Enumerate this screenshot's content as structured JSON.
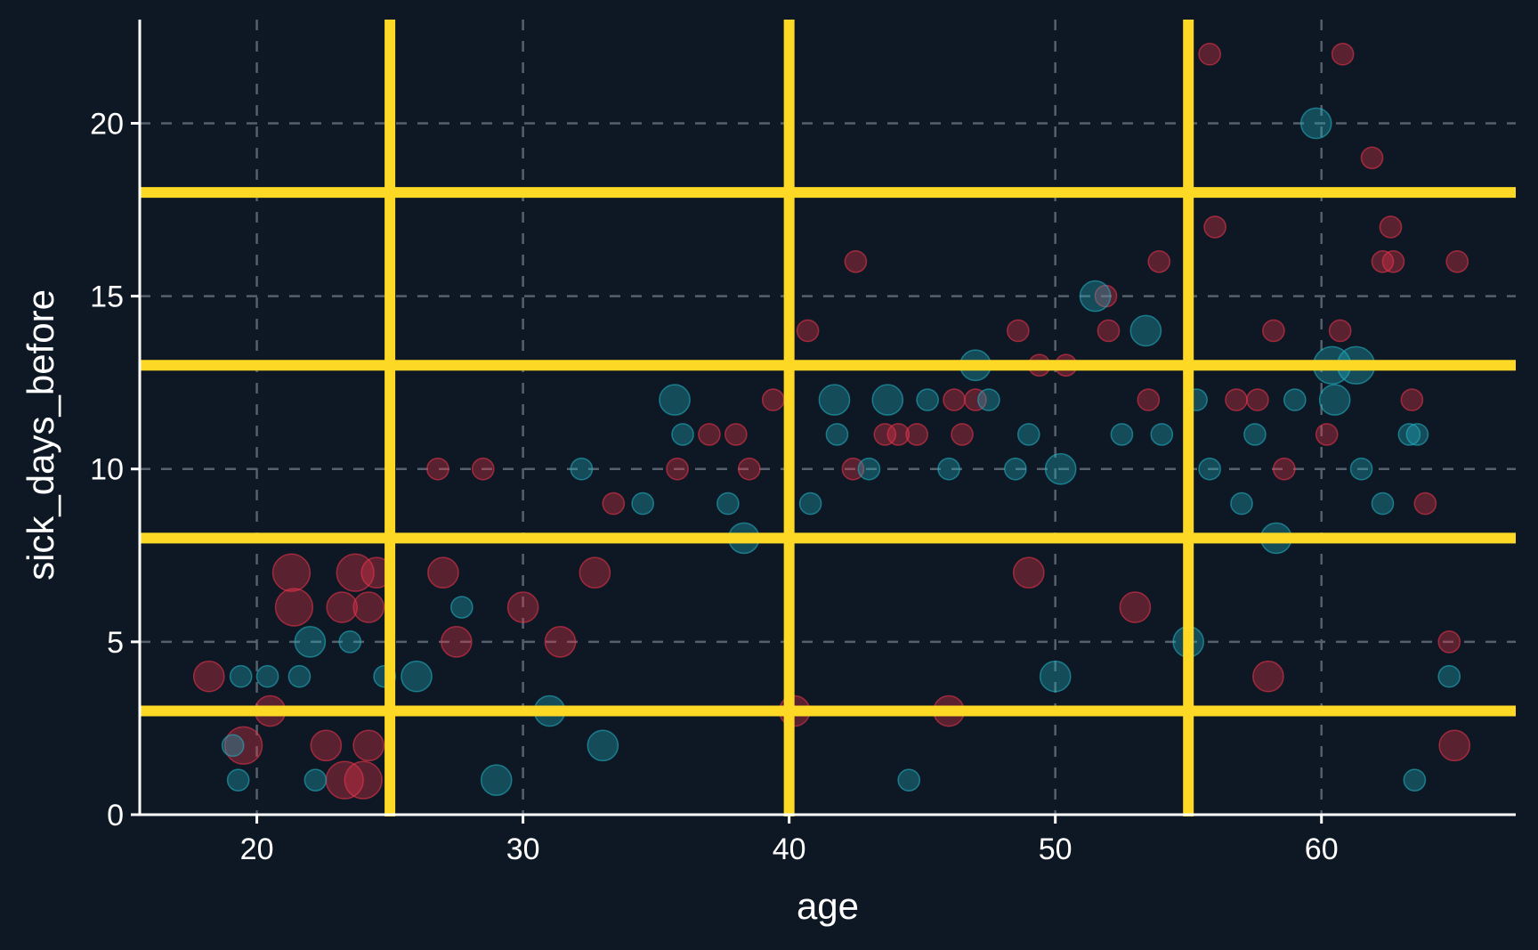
{
  "chart_data": {
    "type": "scatter",
    "title": "",
    "xlabel": "age",
    "ylabel": "sick_days_before",
    "xlim": [
      15.6,
      67.3
    ],
    "ylim": [
      0,
      23
    ],
    "x_ticks": [
      20,
      30,
      40,
      50,
      60
    ],
    "x_tick_labels": [
      "20",
      "30",
      "40",
      "50",
      "60"
    ],
    "y_ticks": [
      0,
      5,
      10,
      15,
      20
    ],
    "y_tick_labels": [
      "0",
      "5",
      "10",
      "15",
      "20"
    ],
    "grid": true,
    "legend": "none",
    "background_color": "#0e1824",
    "reference_lines": {
      "color": "#fdd825",
      "vertical_x": [
        25,
        40,
        55
      ],
      "horizontal_y": [
        3,
        8,
        13,
        18
      ]
    },
    "series": [
      {
        "color": "#e8334a",
        "opacity": 0.35,
        "points": [
          [
            18.2,
            4,
            2
          ],
          [
            19.5,
            2,
            3
          ],
          [
            20.5,
            3,
            2
          ],
          [
            21.3,
            7,
            3
          ],
          [
            21.4,
            6,
            3
          ],
          [
            22.6,
            2,
            2
          ],
          [
            23.2,
            6,
            2
          ],
          [
            23.3,
            1,
            3
          ],
          [
            23.7,
            7,
            3
          ],
          [
            24.0,
            1,
            3
          ],
          [
            24.2,
            6,
            2
          ],
          [
            24.5,
            7,
            2
          ],
          [
            24.2,
            2,
            2
          ],
          [
            26.8,
            10,
            1
          ],
          [
            27.0,
            7,
            2
          ],
          [
            27.5,
            5,
            2
          ],
          [
            28.5,
            10,
            1
          ],
          [
            30.0,
            6,
            2
          ],
          [
            31.4,
            5,
            2
          ],
          [
            32.7,
            7,
            2
          ],
          [
            33.4,
            9,
            1
          ],
          [
            35.8,
            10,
            1
          ],
          [
            37.0,
            11,
            1
          ],
          [
            38.0,
            11,
            1
          ],
          [
            38.5,
            10,
            1
          ],
          [
            39.4,
            12,
            1
          ],
          [
            40.2,
            3,
            2
          ],
          [
            40.7,
            14,
            1
          ],
          [
            42.4,
            10,
            1
          ],
          [
            42.5,
            16,
            1
          ],
          [
            43.6,
            11,
            1
          ],
          [
            44.1,
            11,
            1
          ],
          [
            44.8,
            11,
            1
          ],
          [
            46.2,
            12,
            1
          ],
          [
            46.5,
            11,
            1
          ],
          [
            47.0,
            12,
            1
          ],
          [
            48.6,
            14,
            1
          ],
          [
            49.4,
            13,
            1
          ],
          [
            50.4,
            13,
            1
          ],
          [
            52.0,
            14,
            1
          ],
          [
            51.9,
            15,
            1
          ],
          [
            53.5,
            12,
            1
          ],
          [
            53.9,
            16,
            1
          ],
          [
            55.8,
            22,
            1
          ],
          [
            56.0,
            17,
            1
          ],
          [
            56.8,
            12,
            1
          ],
          [
            57.6,
            12,
            1
          ],
          [
            58.2,
            14,
            1
          ],
          [
            58.6,
            10,
            1
          ],
          [
            60.2,
            11,
            1
          ],
          [
            60.7,
            14,
            1
          ],
          [
            60.8,
            22,
            1
          ],
          [
            61.9,
            19,
            1
          ],
          [
            62.3,
            16,
            1
          ],
          [
            62.7,
            16,
            1
          ],
          [
            62.6,
            17,
            1
          ],
          [
            63.4,
            12,
            1
          ],
          [
            63.9,
            9,
            1
          ],
          [
            64.8,
            5,
            1
          ],
          [
            65.0,
            2,
            2
          ],
          [
            65.1,
            16,
            1
          ],
          [
            46.0,
            3,
            2
          ],
          [
            53.0,
            6,
            2
          ],
          [
            49.0,
            7,
            2
          ],
          [
            58.0,
            4,
            2
          ]
        ]
      },
      {
        "color": "#22aebf",
        "opacity": 0.35,
        "points": [
          [
            19.1,
            2,
            1
          ],
          [
            19.3,
            1,
            1
          ],
          [
            19.4,
            4,
            1
          ],
          [
            20.4,
            4,
            1
          ],
          [
            21.6,
            4,
            1
          ],
          [
            22.0,
            5,
            2
          ],
          [
            22.2,
            1,
            1
          ],
          [
            23.5,
            5,
            1
          ],
          [
            24.8,
            4,
            1
          ],
          [
            26.0,
            4,
            2
          ],
          [
            27.7,
            6,
            1
          ],
          [
            29.0,
            1,
            2
          ],
          [
            31.0,
            3,
            2
          ],
          [
            32.2,
            10,
            1
          ],
          [
            33.0,
            2,
            2
          ],
          [
            34.5,
            9,
            1
          ],
          [
            35.7,
            12,
            2
          ],
          [
            36.0,
            11,
            1
          ],
          [
            37.7,
            9,
            1
          ],
          [
            38.3,
            8,
            2
          ],
          [
            40.8,
            9,
            1
          ],
          [
            41.7,
            12,
            2
          ],
          [
            41.8,
            11,
            1
          ],
          [
            43.0,
            10,
            1
          ],
          [
            43.7,
            12,
            2
          ],
          [
            45.2,
            12,
            1
          ],
          [
            46.0,
            10,
            1
          ],
          [
            47.0,
            13,
            2
          ],
          [
            47.5,
            12,
            1
          ],
          [
            48.5,
            10,
            1
          ],
          [
            49.0,
            11,
            1
          ],
          [
            50.2,
            10,
            2
          ],
          [
            51.5,
            15,
            2
          ],
          [
            52.5,
            11,
            1
          ],
          [
            53.4,
            14,
            2
          ],
          [
            54.0,
            11,
            1
          ],
          [
            55.3,
            12,
            1
          ],
          [
            55.8,
            10,
            1
          ],
          [
            57.0,
            9,
            1
          ],
          [
            57.5,
            11,
            1
          ],
          [
            58.3,
            8,
            2
          ],
          [
            59.0,
            12,
            1
          ],
          [
            59.8,
            20,
            2
          ],
          [
            60.4,
            13,
            3
          ],
          [
            60.5,
            12,
            2
          ],
          [
            61.3,
            13,
            3
          ],
          [
            61.5,
            10,
            1
          ],
          [
            62.3,
            9,
            1
          ],
          [
            63.3,
            11,
            1
          ],
          [
            63.6,
            11,
            1
          ],
          [
            63.5,
            1,
            1
          ],
          [
            64.8,
            4,
            1
          ],
          [
            44.5,
            1,
            1
          ],
          [
            50.0,
            4,
            2
          ],
          [
            55.0,
            5,
            2
          ]
        ]
      }
    ]
  }
}
